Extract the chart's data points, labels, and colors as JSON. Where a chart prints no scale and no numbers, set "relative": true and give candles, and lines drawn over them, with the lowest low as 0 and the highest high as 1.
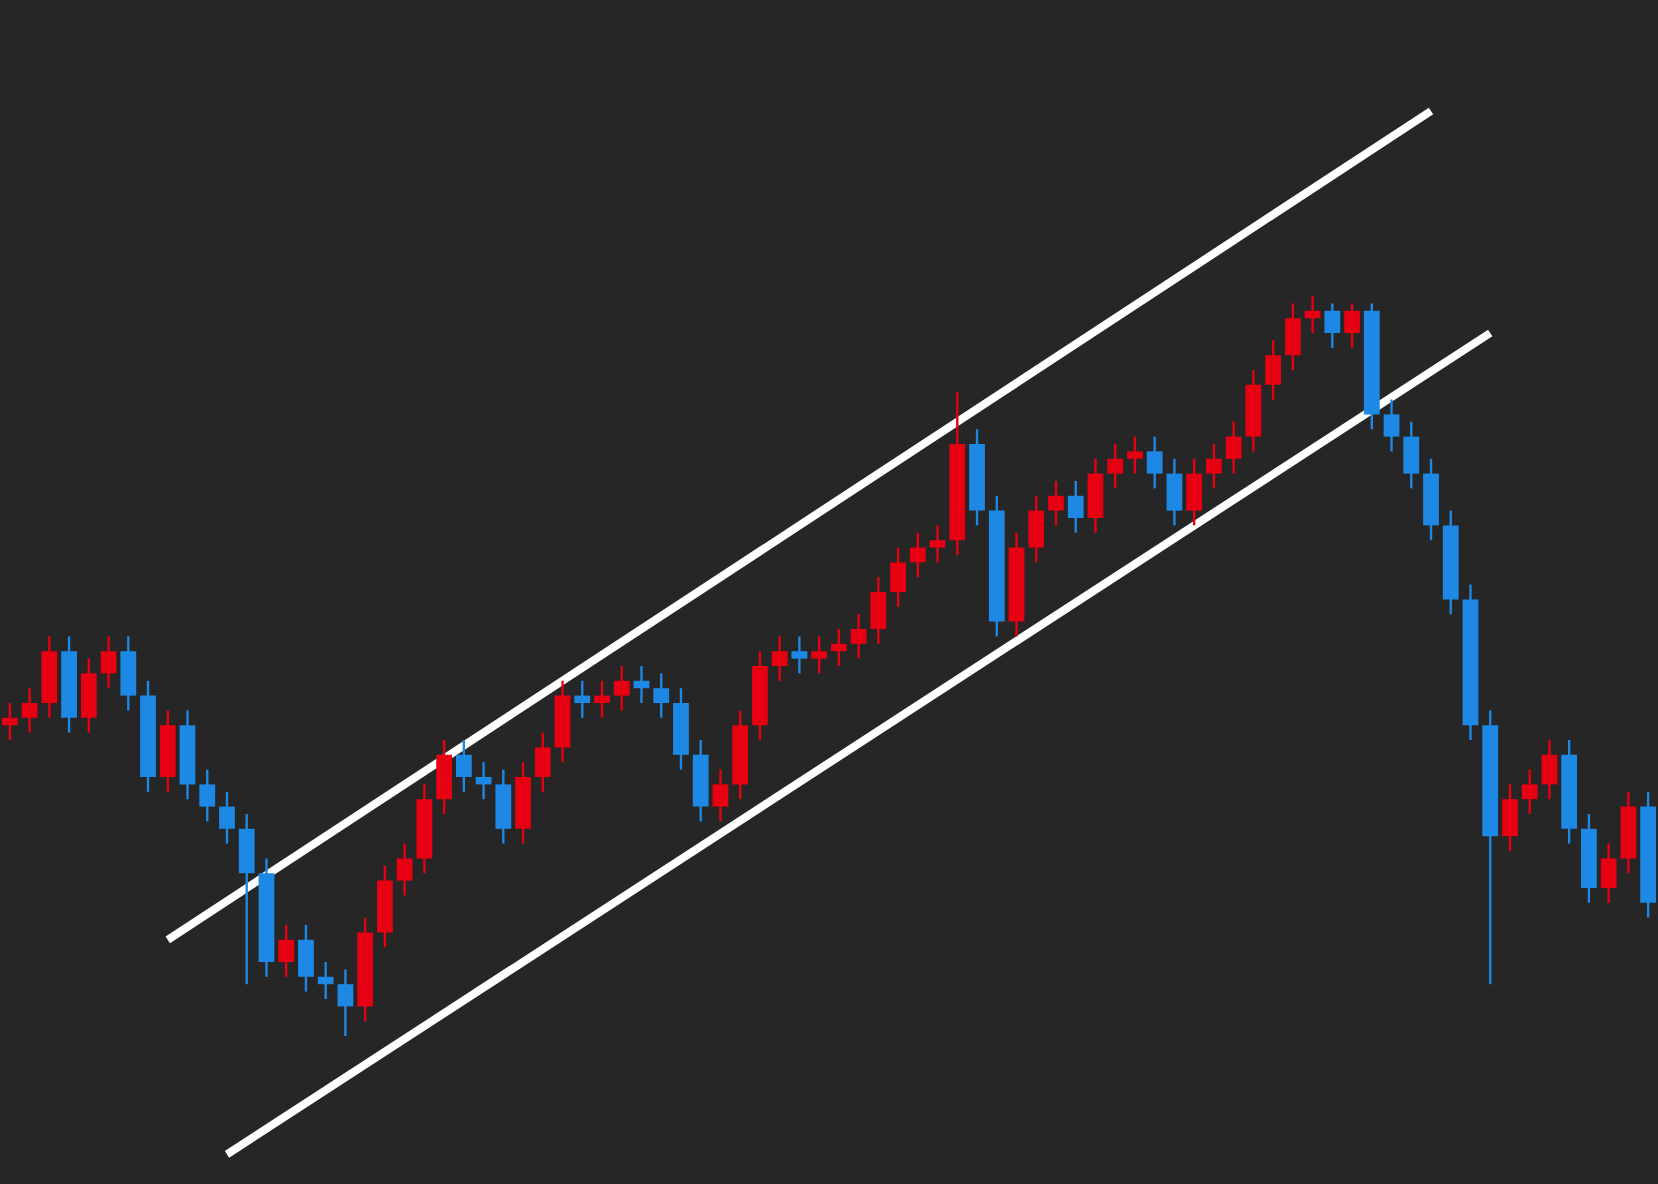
{
  "chart_data": {
    "type": "candlestick",
    "relative": true,
    "categories": [
      null,
      null,
      null,
      null,
      null,
      null,
      null,
      null,
      null,
      null,
      null,
      null,
      null,
      null,
      null,
      null,
      null,
      null,
      null,
      null,
      null,
      null,
      null,
      null,
      null,
      null,
      null,
      null,
      null,
      null,
      null,
      null,
      null,
      null,
      null,
      null,
      null,
      null,
      null,
      null,
      null,
      null,
      null,
      null,
      null,
      null,
      null,
      null,
      null,
      null,
      null,
      null,
      null,
      null,
      null,
      null,
      null,
      null,
      null,
      null,
      null,
      null,
      null,
      null,
      null,
      null,
      null,
      null,
      null,
      null,
      null,
      null,
      null,
      null,
      null,
      null,
      null,
      null,
      null,
      null,
      null,
      null,
      null,
      null
    ],
    "ohlc": [
      [
        0.42,
        0.45,
        0.4,
        0.43
      ],
      [
        0.43,
        0.47,
        0.41,
        0.45
      ],
      [
        0.45,
        0.54,
        0.43,
        0.52
      ],
      [
        0.52,
        0.54,
        0.41,
        0.43
      ],
      [
        0.43,
        0.51,
        0.41,
        0.49
      ],
      [
        0.49,
        0.54,
        0.47,
        0.52
      ],
      [
        0.52,
        0.54,
        0.44,
        0.46
      ],
      [
        0.46,
        0.48,
        0.33,
        0.35
      ],
      [
        0.35,
        0.44,
        0.33,
        0.42
      ],
      [
        0.42,
        0.44,
        0.32,
        0.34
      ],
      [
        0.34,
        0.36,
        0.29,
        0.31
      ],
      [
        0.31,
        0.33,
        0.26,
        0.28
      ],
      [
        0.28,
        0.3,
        0.07,
        0.22
      ],
      [
        0.22,
        0.24,
        0.08,
        0.1
      ],
      [
        0.1,
        0.15,
        0.08,
        0.13
      ],
      [
        0.13,
        0.15,
        0.06,
        0.08
      ],
      [
        0.08,
        0.1,
        0.05,
        0.07
      ],
      [
        0.07,
        0.09,
        0.0,
        0.04
      ],
      [
        0.04,
        0.16,
        0.02,
        0.14
      ],
      [
        0.14,
        0.23,
        0.12,
        0.21
      ],
      [
        0.21,
        0.26,
        0.19,
        0.24
      ],
      [
        0.24,
        0.34,
        0.22,
        0.32
      ],
      [
        0.32,
        0.4,
        0.3,
        0.38
      ],
      [
        0.38,
        0.4,
        0.33,
        0.35
      ],
      [
        0.35,
        0.37,
        0.32,
        0.34
      ],
      [
        0.34,
        0.36,
        0.26,
        0.28
      ],
      [
        0.28,
        0.37,
        0.26,
        0.35
      ],
      [
        0.35,
        0.41,
        0.33,
        0.39
      ],
      [
        0.39,
        0.48,
        0.37,
        0.46
      ],
      [
        0.46,
        0.48,
        0.43,
        0.45
      ],
      [
        0.45,
        0.48,
        0.43,
        0.46
      ],
      [
        0.46,
        0.5,
        0.44,
        0.48
      ],
      [
        0.48,
        0.5,
        0.45,
        0.47
      ],
      [
        0.47,
        0.49,
        0.43,
        0.45
      ],
      [
        0.45,
        0.47,
        0.36,
        0.38
      ],
      [
        0.38,
        0.4,
        0.29,
        0.31
      ],
      [
        0.31,
        0.36,
        0.29,
        0.34
      ],
      [
        0.34,
        0.44,
        0.32,
        0.42
      ],
      [
        0.42,
        0.52,
        0.4,
        0.5
      ],
      [
        0.5,
        0.54,
        0.48,
        0.52
      ],
      [
        0.52,
        0.54,
        0.49,
        0.51
      ],
      [
        0.51,
        0.54,
        0.49,
        0.52
      ],
      [
        0.52,
        0.55,
        0.5,
        0.53
      ],
      [
        0.53,
        0.57,
        0.51,
        0.55
      ],
      [
        0.55,
        0.62,
        0.53,
        0.6
      ],
      [
        0.6,
        0.66,
        0.58,
        0.64
      ],
      [
        0.64,
        0.68,
        0.62,
        0.66
      ],
      [
        0.66,
        0.69,
        0.64,
        0.67
      ],
      [
        0.67,
        0.87,
        0.65,
        0.8
      ],
      [
        0.8,
        0.82,
        0.69,
        0.71
      ],
      [
        0.71,
        0.73,
        0.54,
        0.56
      ],
      [
        0.56,
        0.68,
        0.54,
        0.66
      ],
      [
        0.66,
        0.73,
        0.64,
        0.71
      ],
      [
        0.71,
        0.75,
        0.69,
        0.73
      ],
      [
        0.73,
        0.75,
        0.68,
        0.7
      ],
      [
        0.7,
        0.78,
        0.68,
        0.76
      ],
      [
        0.76,
        0.8,
        0.74,
        0.78
      ],
      [
        0.78,
        0.81,
        0.76,
        0.79
      ],
      [
        0.79,
        0.81,
        0.74,
        0.76
      ],
      [
        0.76,
        0.78,
        0.69,
        0.71
      ],
      [
        0.71,
        0.78,
        0.69,
        0.76
      ],
      [
        0.76,
        0.8,
        0.74,
        0.78
      ],
      [
        0.78,
        0.83,
        0.76,
        0.81
      ],
      [
        0.81,
        0.9,
        0.79,
        0.88
      ],
      [
        0.88,
        0.94,
        0.86,
        0.92
      ],
      [
        0.92,
        0.99,
        0.9,
        0.97
      ],
      [
        0.97,
        1.0,
        0.95,
        0.98
      ],
      [
        0.98,
        0.99,
        0.93,
        0.95
      ],
      [
        0.95,
        0.99,
        0.93,
        0.98
      ],
      [
        0.98,
        0.99,
        0.82,
        0.84
      ],
      [
        0.84,
        0.86,
        0.79,
        0.81
      ],
      [
        0.81,
        0.83,
        0.74,
        0.76
      ],
      [
        0.76,
        0.78,
        0.67,
        0.69
      ],
      [
        0.69,
        0.71,
        0.57,
        0.59
      ],
      [
        0.59,
        0.61,
        0.4,
        0.42
      ],
      [
        0.42,
        0.44,
        0.07,
        0.27
      ],
      [
        0.27,
        0.34,
        0.25,
        0.32
      ],
      [
        0.32,
        0.36,
        0.3,
        0.34
      ],
      [
        0.34,
        0.4,
        0.32,
        0.38
      ],
      [
        0.38,
        0.4,
        0.26,
        0.28
      ],
      [
        0.28,
        0.3,
        0.18,
        0.2
      ],
      [
        0.2,
        0.26,
        0.18,
        0.24
      ],
      [
        0.24,
        0.33,
        0.22,
        0.31
      ],
      [
        0.31,
        0.33,
        0.16,
        0.18
      ]
    ],
    "colors": [
      "#e60012",
      "#e60012",
      "#e60012",
      "#1e88e5",
      "#e60012",
      "#e60012",
      "#1e88e5",
      "#1e88e5",
      "#e60012",
      "#1e88e5",
      "#1e88e5",
      "#1e88e5",
      "#1e88e5",
      "#1e88e5",
      "#e60012",
      "#1e88e5",
      "#1e88e5",
      "#1e88e5",
      "#e60012",
      "#e60012",
      "#e60012",
      "#e60012",
      "#e60012",
      "#1e88e5",
      "#1e88e5",
      "#1e88e5",
      "#e60012",
      "#e60012",
      "#e60012",
      "#1e88e5",
      "#e60012",
      "#e60012",
      "#1e88e5",
      "#1e88e5",
      "#1e88e5",
      "#1e88e5",
      "#e60012",
      "#e60012",
      "#e60012",
      "#e60012",
      "#1e88e5",
      "#e60012",
      "#e60012",
      "#e60012",
      "#e60012",
      "#e60012",
      "#e60012",
      "#e60012",
      "#e60012",
      "#1e88e5",
      "#1e88e5",
      "#e60012",
      "#e60012",
      "#e60012",
      "#1e88e5",
      "#e60012",
      "#e60012",
      "#e60012",
      "#1e88e5",
      "#1e88e5",
      "#e60012",
      "#e60012",
      "#e60012",
      "#e60012",
      "#e60012",
      "#e60012",
      "#e60012",
      "#1e88e5",
      "#e60012",
      "#1e88e5",
      "#1e88e5",
      "#1e88e5",
      "#1e88e5",
      "#1e88e5",
      "#1e88e5",
      "#1e88e5",
      "#e60012",
      "#e60012",
      "#e60012",
      "#1e88e5",
      "#1e88e5",
      "#e60012",
      "#e60012",
      "#1e88e5"
    ],
    "series": [
      {
        "type": "line",
        "color": "#ffffff",
        "values": [
          null,
          null,
          null,
          null,
          null,
          null,
          null,
          null,
          0.13,
          null,
          null,
          null,
          null,
          null,
          null,
          null,
          null,
          null,
          null,
          null,
          null,
          null,
          null,
          null,
          null,
          null,
          null,
          null,
          null,
          null,
          null,
          null,
          null,
          null,
          null,
          null,
          null,
          null,
          null,
          null,
          null,
          null,
          null,
          null,
          null,
          null,
          null,
          null,
          null,
          null,
          null,
          null,
          null,
          null,
          null,
          null,
          null,
          null,
          null,
          null,
          null,
          null,
          null,
          null,
          null,
          null,
          null,
          null,
          null,
          null,
          null,
          null,
          1.25,
          null,
          null,
          null,
          null,
          null,
          null,
          null,
          null,
          null,
          null,
          null
        ]
      },
      {
        "type": "line",
        "color": "#ffffff",
        "values": [
          null,
          null,
          null,
          null,
          null,
          null,
          null,
          null,
          null,
          null,
          null,
          -0.16,
          null,
          null,
          null,
          null,
          null,
          null,
          null,
          null,
          null,
          null,
          null,
          null,
          null,
          null,
          null,
          null,
          null,
          null,
          null,
          null,
          null,
          null,
          null,
          null,
          null,
          null,
          null,
          null,
          null,
          null,
          null,
          null,
          null,
          null,
          null,
          null,
          null,
          null,
          null,
          null,
          null,
          null,
          null,
          null,
          null,
          null,
          null,
          null,
          null,
          null,
          null,
          null,
          null,
          null,
          null,
          null,
          null,
          null,
          null,
          null,
          null,
          null,
          null,
          0.95,
          null,
          null,
          null,
          null,
          null,
          null,
          null,
          null
        ]
      }
    ]
  }
}
